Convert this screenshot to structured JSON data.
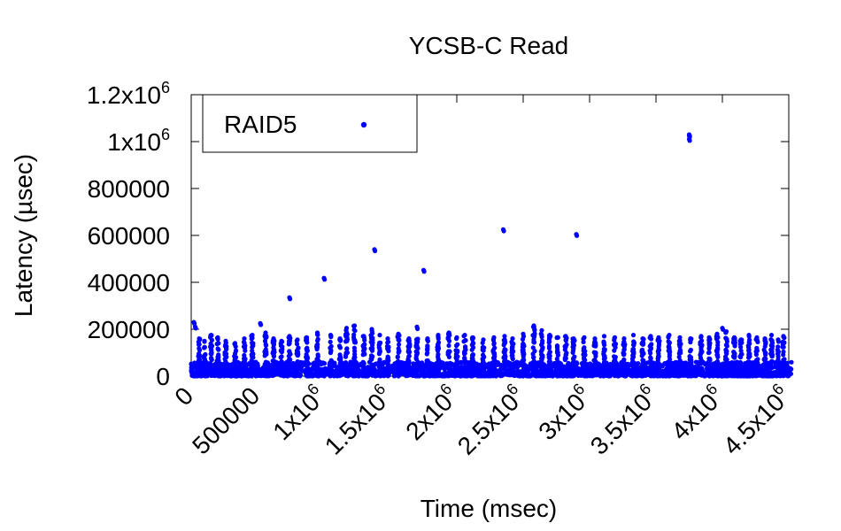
{
  "chart_data": {
    "type": "scatter",
    "title": "YCSB-C Read",
    "xlabel": "Time (msec)",
    "ylabel": "Latency (µsec)",
    "xlim": [
      0,
      4500000
    ],
    "ylim": [
      0,
      1200000
    ],
    "x_ticks": [
      {
        "value": 0,
        "base": "0",
        "exp": ""
      },
      {
        "value": 500000,
        "base": "500000",
        "exp": ""
      },
      {
        "value": 1000000,
        "base": "1x10",
        "exp": "6"
      },
      {
        "value": 1500000,
        "base": "1.5x10",
        "exp": "6"
      },
      {
        "value": 2000000,
        "base": "2x10",
        "exp": "6"
      },
      {
        "value": 2500000,
        "base": "2.5x10",
        "exp": "6"
      },
      {
        "value": 3000000,
        "base": "3x10",
        "exp": "6"
      },
      {
        "value": 3500000,
        "base": "3.5x10",
        "exp": "6"
      },
      {
        "value": 4000000,
        "base": "4x10",
        "exp": "6"
      },
      {
        "value": 4500000,
        "base": "4.5x10",
        "exp": "6"
      }
    ],
    "y_ticks": [
      {
        "value": 0,
        "base": "0",
        "exp": ""
      },
      {
        "value": 200000,
        "base": "200000",
        "exp": ""
      },
      {
        "value": 400000,
        "base": "400000",
        "exp": ""
      },
      {
        "value": 600000,
        "base": "600000",
        "exp": ""
      },
      {
        "value": 800000,
        "base": "800000",
        "exp": ""
      },
      {
        "value": 1000000,
        "base": "1x10",
        "exp": "6"
      },
      {
        "value": 1200000,
        "base": "1.2x10",
        "exp": "6"
      }
    ],
    "grid": false,
    "legend_position": "top-left",
    "series": [
      {
        "name": "RAID5",
        "color": "#0000ff",
        "marker": "filled-circle",
        "outliers": [
          [
            20000,
            230000
          ],
          [
            30000,
            210000
          ],
          [
            520000,
            225000
          ],
          [
            740000,
            335000
          ],
          [
            1000000,
            418000
          ],
          [
            1380000,
            540000
          ],
          [
            1750000,
            452000
          ],
          [
            2350000,
            625000
          ],
          [
            2900000,
            605000
          ],
          [
            3750000,
            1010000
          ],
          [
            3750000,
            1025000
          ],
          [
            3750000,
            1030000
          ],
          [
            4000000,
            205000
          ]
        ],
        "bursts": [
          [
            60000,
            160000
          ],
          [
            100000,
            150000
          ],
          [
            150000,
            175000
          ],
          [
            200000,
            165000
          ],
          [
            260000,
            150000
          ],
          [
            330000,
            140000
          ],
          [
            400000,
            160000
          ],
          [
            460000,
            175000
          ],
          [
            560000,
            185000
          ],
          [
            620000,
            160000
          ],
          [
            680000,
            150000
          ],
          [
            740000,
            170000
          ],
          [
            800000,
            155000
          ],
          [
            870000,
            165000
          ],
          [
            950000,
            185000
          ],
          [
            1050000,
            175000
          ],
          [
            1120000,
            160000
          ],
          [
            1170000,
            205000
          ],
          [
            1230000,
            215000
          ],
          [
            1300000,
            170000
          ],
          [
            1360000,
            200000
          ],
          [
            1420000,
            175000
          ],
          [
            1480000,
            160000
          ],
          [
            1560000,
            180000
          ],
          [
            1640000,
            160000
          ],
          [
            1700000,
            210000
          ],
          [
            1780000,
            160000
          ],
          [
            1860000,
            175000
          ],
          [
            1940000,
            185000
          ],
          [
            2000000,
            165000
          ],
          [
            2060000,
            175000
          ],
          [
            2120000,
            165000
          ],
          [
            2200000,
            155000
          ],
          [
            2280000,
            165000
          ],
          [
            2360000,
            170000
          ],
          [
            2420000,
            160000
          ],
          [
            2500000,
            180000
          ],
          [
            2580000,
            215000
          ],
          [
            2640000,
            195000
          ],
          [
            2700000,
            175000
          ],
          [
            2760000,
            165000
          ],
          [
            2820000,
            170000
          ],
          [
            2880000,
            160000
          ],
          [
            2960000,
            165000
          ],
          [
            3040000,
            160000
          ],
          [
            3110000,
            170000
          ],
          [
            3190000,
            165000
          ],
          [
            3260000,
            160000
          ],
          [
            3330000,
            175000
          ],
          [
            3400000,
            160000
          ],
          [
            3460000,
            170000
          ],
          [
            3520000,
            165000
          ],
          [
            3600000,
            175000
          ],
          [
            3680000,
            165000
          ],
          [
            3760000,
            160000
          ],
          [
            3840000,
            170000
          ],
          [
            3900000,
            165000
          ],
          [
            3960000,
            180000
          ],
          [
            4030000,
            190000
          ],
          [
            4090000,
            165000
          ],
          [
            4140000,
            155000
          ],
          [
            4200000,
            175000
          ],
          [
            4260000,
            165000
          ],
          [
            4320000,
            160000
          ],
          [
            4370000,
            175000
          ],
          [
            4420000,
            155000
          ],
          [
            4460000,
            170000
          ]
        ],
        "dense_band": {
          "x_range": [
            0,
            4520000
          ],
          "y_range": [
            0,
            60000
          ]
        }
      }
    ]
  }
}
